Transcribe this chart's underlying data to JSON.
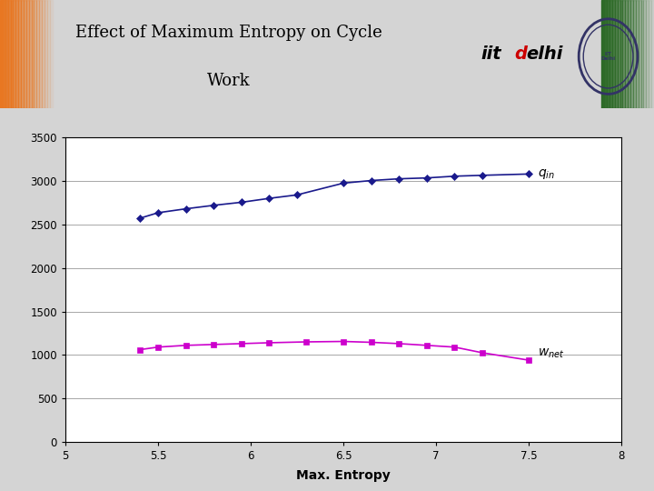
{
  "title_line1": "Effect of Maximum Entropy on Cycle",
  "title_line2": "Work",
  "xlabel": "Max. Entropy",
  "xlim": [
    5,
    8
  ],
  "ylim": [
    0,
    3500
  ],
  "yticks": [
    0,
    500,
    1000,
    1500,
    2000,
    2500,
    3000,
    3500
  ],
  "xticks": [
    5,
    5.5,
    6,
    6.5,
    7,
    7.5,
    8
  ],
  "qin_x": [
    5.4,
    5.5,
    5.65,
    5.8,
    5.95,
    6.1,
    6.25,
    6.5,
    6.65,
    6.8,
    6.95,
    7.1,
    7.25,
    7.5
  ],
  "qin_y": [
    2570,
    2635,
    2680,
    2720,
    2755,
    2800,
    2840,
    2975,
    3005,
    3025,
    3035,
    3055,
    3065,
    3080
  ],
  "wnet_x": [
    5.4,
    5.5,
    5.65,
    5.8,
    5.95,
    6.1,
    6.3,
    6.5,
    6.65,
    6.8,
    6.95,
    7.1,
    7.25,
    7.5
  ],
  "wnet_y": [
    1060,
    1090,
    1110,
    1120,
    1130,
    1140,
    1150,
    1155,
    1145,
    1130,
    1110,
    1090,
    1025,
    940
  ],
  "qin_color": "#1a1a8c",
  "wnet_color": "#cc00cc",
  "iitd_red": "#cc0000",
  "blue_bar_color": "#3333aa",
  "bg_color": "#d4d4d4",
  "header_bg": "#ffffff",
  "chart_border_color": "#aaaaaa"
}
